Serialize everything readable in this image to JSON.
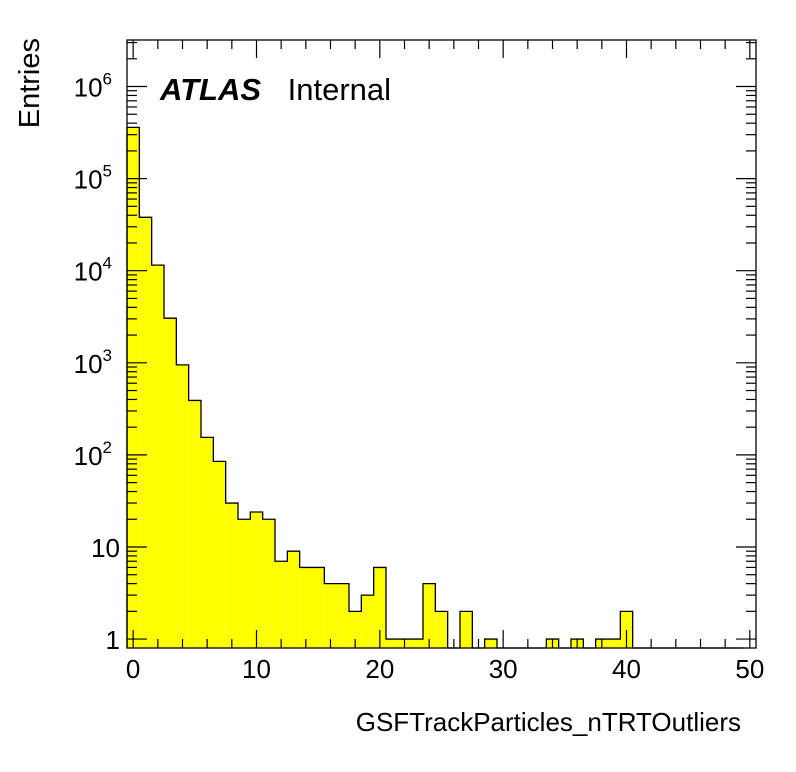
{
  "chart_data": {
    "type": "bar",
    "ylabel": "Entries",
    "xlabel": "GSFTrackParticles_nTRTOutliers",
    "label_bold": "ATLAS",
    "label_text": "Internal",
    "xlim": [
      -0.5,
      50.5
    ],
    "ylim": [
      0.8,
      3200000
    ],
    "yscale": "log",
    "fill_color": "#ffff00",
    "line_color": "#000000",
    "x_ticks": [
      "0",
      "10",
      "20",
      "30",
      "40",
      "50"
    ],
    "x_tick_values": [
      0,
      10,
      20,
      30,
      40,
      50
    ],
    "y_ticks": [
      {
        "value": 1,
        "base": "1",
        "exp": ""
      },
      {
        "value": 10,
        "base": "10",
        "exp": ""
      },
      {
        "value": 100,
        "base": "10",
        "exp": "2"
      },
      {
        "value": 1000,
        "base": "10",
        "exp": "3"
      },
      {
        "value": 10000,
        "base": "10",
        "exp": "4"
      },
      {
        "value": 100000,
        "base": "10",
        "exp": "5"
      },
      {
        "value": 1000000,
        "base": "10",
        "exp": "6"
      }
    ],
    "bin_edges_start": -0.5,
    "bin_width": 1,
    "values": [
      360000,
      38000,
      11500,
      3050,
      950,
      390,
      155,
      85,
      30,
      20,
      24,
      20,
      7,
      9,
      6,
      6,
      4,
      4,
      2,
      3,
      6,
      1,
      1,
      1,
      4,
      2,
      0,
      2,
      0,
      1,
      0,
      0,
      0,
      0,
      1,
      0,
      1,
      0,
      1,
      1,
      2,
      0,
      0,
      0,
      0,
      0,
      0,
      0,
      0,
      0
    ]
  }
}
